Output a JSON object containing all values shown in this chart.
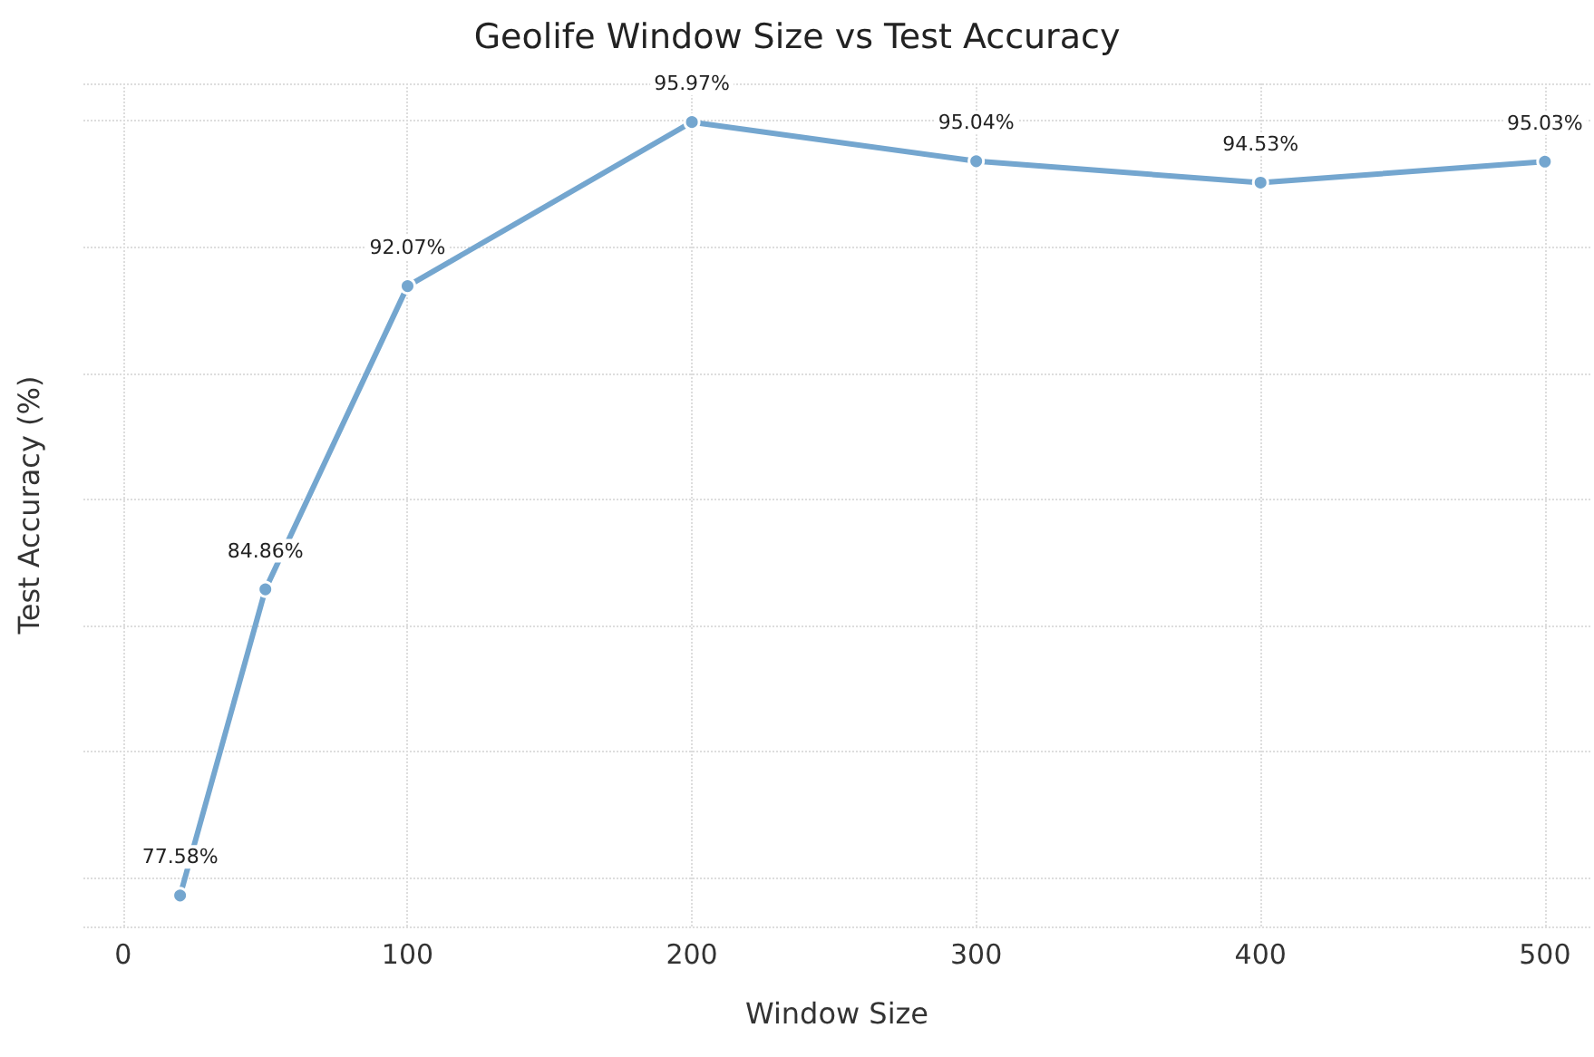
{
  "chart_data": {
    "type": "line",
    "title": "Geolife Window Size vs Test Accuracy",
    "xlabel": "Window Size",
    "ylabel": "Test Accuracy (%)",
    "x": [
      20,
      50,
      100,
      200,
      300,
      400,
      500
    ],
    "series": [
      {
        "color": "#74a6cf",
        "values": [
          77.58,
          84.86,
          92.07,
          95.97,
          95.04,
          94.53,
          95.03
        ],
        "value_labels": [
          "77.58%",
          "84.86%",
          "92.07%",
          "95.97%",
          "95.04%",
          "94.53%",
          "95.03%"
        ]
      }
    ],
    "marker": "circle",
    "line_style": "solid",
    "grid": true,
    "tick_labels": "x",
    "xlim": [
      -14,
      516
    ],
    "xticks": [
      0,
      100,
      200,
      300,
      400,
      500
    ]
  }
}
